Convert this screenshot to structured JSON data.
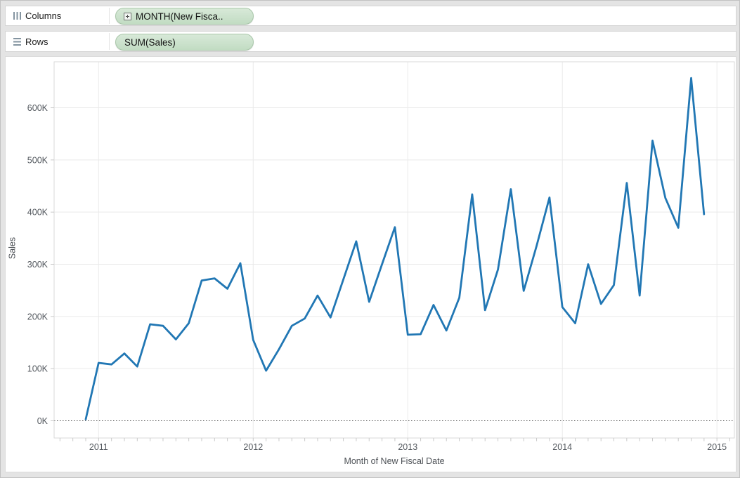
{
  "shelves": {
    "columns": {
      "label": "Columns",
      "pill": {
        "label": "MONTH(New Fisca..",
        "expand_icon": true
      }
    },
    "rows": {
      "label": "Rows",
      "pill": {
        "label": "SUM(Sales)",
        "expand_icon": false
      }
    }
  },
  "colors": {
    "line": "#2177b4",
    "pill_bg": "#cbe0cc",
    "pill_border": "#a8c6a9",
    "gridline": "#eaeaea",
    "plot_border": "#d9d9d9",
    "tick_mark": "#c9c9c9",
    "tick_text": "#54595f",
    "axis_title_text": "#4d5156",
    "zero_line": "#3f3f3f",
    "frame_bg": "#e4e4e4"
  },
  "chart_data": {
    "type": "line",
    "title": "",
    "xlabel": "Month of New Fiscal Date",
    "ylabel": "Sales",
    "x_start": "2010-12",
    "x_interval": "month",
    "y_unit": "thousands",
    "grid": true,
    "zero_line": "dotted",
    "ylim_k": [
      -33,
      688
    ],
    "y_ticks": [
      {
        "label": "0K",
        "value": 0
      },
      {
        "label": "100K",
        "value": 100
      },
      {
        "label": "200K",
        "value": 200
      },
      {
        "label": "300K",
        "value": 300
      },
      {
        "label": "400K",
        "value": 400
      },
      {
        "label": "500K",
        "value": 500
      },
      {
        "label": "600K",
        "value": 600
      }
    ],
    "x_ticks": [
      {
        "label": "2011",
        "month_index": 1
      },
      {
        "label": "2012",
        "month_index": 13
      },
      {
        "label": "2013",
        "month_index": 25
      },
      {
        "label": "2014",
        "month_index": 37
      },
      {
        "label": "2015",
        "month_index": 49
      }
    ],
    "series": [
      {
        "name": "SUM(Sales)",
        "color": "#2177b4",
        "values_k": [
          3,
          111,
          108,
          129,
          104,
          185,
          182,
          156,
          187,
          269,
          273,
          253,
          302,
          155,
          96,
          137,
          182,
          196,
          240,
          198,
          271,
          344,
          228,
          300,
          371,
          165,
          166,
          222,
          173,
          236,
          434,
          212,
          290,
          444,
          249,
          335,
          428,
          218,
          187,
          300,
          224,
          260,
          456,
          240,
          537,
          427,
          370,
          657,
          396
        ]
      }
    ]
  }
}
